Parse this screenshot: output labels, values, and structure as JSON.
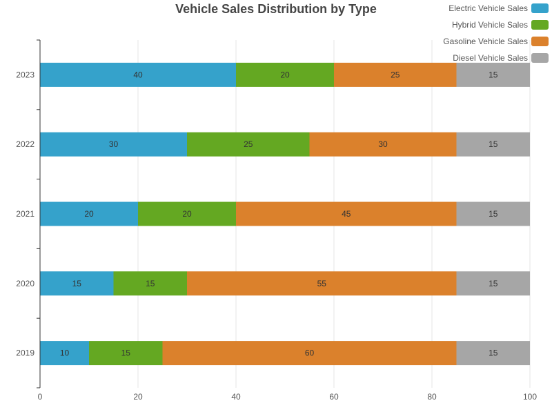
{
  "chart_data": {
    "type": "bar",
    "orientation": "horizontal",
    "stacked": true,
    "title": "Vehicle Sales Distribution by Type",
    "xlabel": "",
    "ylabel": "",
    "categories": [
      "2019",
      "2020",
      "2021",
      "2022",
      "2023"
    ],
    "xlim": [
      0,
      100
    ],
    "x_ticks": [
      "0",
      "20",
      "40",
      "60",
      "80",
      "100"
    ],
    "grid": "vertical",
    "legend_position": "top-right",
    "series": [
      {
        "name": "Electric Vehicle Sales",
        "color": "#35a2cb",
        "values": [
          10,
          15,
          20,
          30,
          40
        ]
      },
      {
        "name": "Hybrid Vehicle Sales",
        "color": "#64a822",
        "values": [
          15,
          15,
          20,
          25,
          20
        ]
      },
      {
        "name": "Gasoline Vehicle Sales",
        "color": "#db812c",
        "values": [
          60,
          55,
          45,
          30,
          25
        ]
      },
      {
        "name": "Diesel Vehicle Sales",
        "color": "#a6a6a6",
        "values": [
          15,
          15,
          15,
          15,
          15
        ]
      }
    ]
  }
}
